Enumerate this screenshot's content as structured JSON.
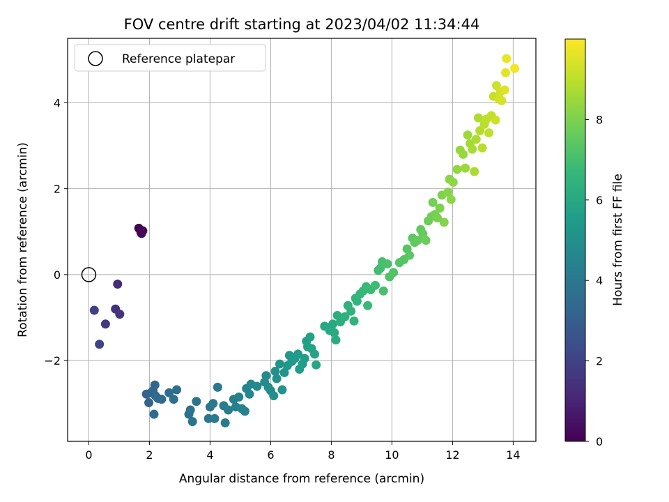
{
  "chart_data": {
    "type": "scatter",
    "title": "FOV centre drift starting at 2023/04/02 11:34:44",
    "xlabel": "Angular distance from reference (arcmin)",
    "ylabel": "Rotation from reference (arcmin)",
    "xlim": [
      -0.7,
      14.75
    ],
    "ylim": [
      -3.88,
      5.5
    ],
    "xticks": [
      0,
      2,
      4,
      6,
      8,
      10,
      12,
      14
    ],
    "yticks": [
      -2,
      0,
      2,
      4
    ],
    "xtick_labels": [
      "0",
      "2",
      "4",
      "6",
      "8",
      "10",
      "12",
      "14"
    ],
    "ytick_labels": [
      "−2",
      "0",
      "2",
      "4"
    ],
    "grid": true,
    "legend": {
      "location": "upper-left",
      "entries": [
        "Reference platepar"
      ]
    },
    "reference_point": {
      "x": 0,
      "y": 0,
      "marker": "open-circle",
      "color": "#000000"
    },
    "colorbar": {
      "label": "Hours from first FF file",
      "range": [
        0,
        10
      ],
      "ticks": [
        0,
        2,
        4,
        6,
        8
      ],
      "tick_labels": [
        "0",
        "2",
        "4",
        "6",
        "8"
      ],
      "colormap": "viridis",
      "colormap_stops": [
        "#440154",
        "#482878",
        "#3e4989",
        "#31688e",
        "#26828e",
        "#1f9e89",
        "#35b779",
        "#6ece58",
        "#b5de2b",
        "#fde725"
      ]
    },
    "series": [
      {
        "color_by": "hours",
        "points": [
          [
            1.65,
            1.08,
            0.0
          ],
          [
            1.72,
            0.98,
            0.05
          ],
          [
            1.78,
            1.02,
            0.1
          ],
          [
            1.74,
            0.96,
            0.15
          ],
          [
            0.95,
            -0.22,
            1.2
          ],
          [
            0.88,
            -0.8,
            1.35
          ],
          [
            1.02,
            -0.92,
            1.5
          ],
          [
            0.55,
            -1.15,
            1.7
          ],
          [
            0.18,
            -0.83,
            1.9
          ],
          [
            0.35,
            -1.62,
            2.05
          ],
          [
            1.9,
            -2.78,
            3.1
          ],
          [
            1.98,
            -2.98,
            3.15
          ],
          [
            2.05,
            -2.75,
            3.2
          ],
          [
            2.12,
            -2.7,
            3.25
          ],
          [
            2.18,
            -2.57,
            3.3
          ],
          [
            2.2,
            -2.82,
            3.35
          ],
          [
            2.28,
            -2.88,
            3.4
          ],
          [
            2.4,
            -2.9,
            3.45
          ],
          [
            2.15,
            -3.25,
            3.5
          ],
          [
            2.65,
            -2.75,
            3.55
          ],
          [
            2.8,
            -2.9,
            3.6
          ],
          [
            2.9,
            -2.68,
            3.65
          ],
          [
            3.3,
            -3.25,
            3.7
          ],
          [
            3.35,
            -3.15,
            3.75
          ],
          [
            3.42,
            -3.42,
            3.8
          ],
          [
            3.55,
            -2.95,
            3.85
          ],
          [
            3.95,
            -3.35,
            3.9
          ],
          [
            4.0,
            -3.08,
            3.95
          ],
          [
            4.1,
            -3.0,
            4.0
          ],
          [
            4.15,
            -3.35,
            4.05
          ],
          [
            4.25,
            -2.62,
            4.1
          ],
          [
            4.45,
            -3.05,
            4.15
          ],
          [
            4.5,
            -3.45,
            4.2
          ],
          [
            4.6,
            -3.15,
            4.25
          ],
          [
            4.78,
            -2.9,
            4.3
          ],
          [
            4.85,
            -3.08,
            4.35
          ],
          [
            4.95,
            -2.85,
            4.4
          ],
          [
            5.05,
            -3.12,
            4.45
          ],
          [
            5.15,
            -3.18,
            4.5
          ],
          [
            5.2,
            -2.65,
            4.55
          ],
          [
            5.3,
            -2.78,
            4.6
          ],
          [
            5.35,
            -2.55,
            4.65
          ],
          [
            5.55,
            -2.6,
            4.7
          ],
          [
            5.8,
            -2.5,
            4.75
          ],
          [
            5.85,
            -2.35,
            4.8
          ],
          [
            5.92,
            -2.62,
            4.85
          ],
          [
            6.0,
            -2.7,
            4.9
          ],
          [
            6.1,
            -2.82,
            4.95
          ],
          [
            6.15,
            -2.25,
            5.0
          ],
          [
            6.2,
            -2.42,
            5.05
          ],
          [
            6.3,
            -2.08,
            5.1
          ],
          [
            6.38,
            -2.68,
            5.15
          ],
          [
            6.45,
            -2.28,
            5.2
          ],
          [
            6.55,
            -2.12,
            5.25
          ],
          [
            6.62,
            -1.88,
            5.3
          ],
          [
            6.7,
            -2.02,
            5.35
          ],
          [
            6.8,
            -1.95,
            5.4
          ],
          [
            6.9,
            -1.85,
            5.45
          ],
          [
            6.95,
            -2.2,
            5.5
          ],
          [
            7.05,
            -2.08,
            5.55
          ],
          [
            7.12,
            -1.95,
            5.6
          ],
          [
            7.18,
            -1.55,
            5.65
          ],
          [
            7.22,
            -1.68,
            5.7
          ],
          [
            7.3,
            -1.45,
            5.75
          ],
          [
            7.35,
            -1.72,
            5.8
          ],
          [
            7.45,
            -1.85,
            5.85
          ],
          [
            7.5,
            -2.1,
            5.9
          ],
          [
            7.78,
            -1.2,
            5.95
          ],
          [
            7.95,
            -1.3,
            6.0
          ],
          [
            8.05,
            -1.15,
            6.05
          ],
          [
            8.1,
            -1.35,
            6.1
          ],
          [
            8.15,
            -1.52,
            6.15
          ],
          [
            8.2,
            -0.95,
            6.2
          ],
          [
            8.3,
            -1.1,
            6.25
          ],
          [
            8.45,
            -0.98,
            6.3
          ],
          [
            8.55,
            -0.72,
            6.35
          ],
          [
            8.65,
            -0.85,
            6.4
          ],
          [
            8.75,
            -1.08,
            6.45
          ],
          [
            8.8,
            -0.55,
            6.5
          ],
          [
            8.85,
            -0.62,
            6.55
          ],
          [
            8.95,
            -0.45,
            6.6
          ],
          [
            9.05,
            -0.38,
            6.65
          ],
          [
            9.15,
            -0.28,
            6.7
          ],
          [
            9.2,
            -0.72,
            6.75
          ],
          [
            9.3,
            -0.35,
            6.8
          ],
          [
            9.45,
            -0.25,
            6.85
          ],
          [
            9.55,
            0.1,
            6.9
          ],
          [
            9.62,
            0.15,
            6.95
          ],
          [
            9.68,
            0.3,
            7.0
          ],
          [
            9.72,
            -0.38,
            7.05
          ],
          [
            9.85,
            0.25,
            7.1
          ],
          [
            9.92,
            -0.05,
            7.15
          ],
          [
            10.05,
            0.05,
            7.2
          ],
          [
            10.25,
            0.28,
            7.25
          ],
          [
            10.4,
            0.35,
            7.3
          ],
          [
            10.5,
            0.6,
            7.35
          ],
          [
            10.58,
            0.45,
            7.4
          ],
          [
            10.68,
            0.85,
            7.45
          ],
          [
            10.75,
            0.75,
            7.5
          ],
          [
            10.85,
            0.8,
            7.55
          ],
          [
            10.95,
            1.05,
            7.6
          ],
          [
            11.02,
            0.95,
            7.65
          ],
          [
            11.12,
            0.8,
            7.7
          ],
          [
            11.2,
            1.25,
            7.75
          ],
          [
            11.3,
            1.35,
            7.8
          ],
          [
            11.35,
            1.68,
            7.85
          ],
          [
            11.42,
            1.4,
            7.9
          ],
          [
            11.5,
            1.32,
            7.95
          ],
          [
            11.58,
            1.55,
            8.0
          ],
          [
            11.65,
            1.85,
            8.05
          ],
          [
            11.72,
            1.22,
            8.1
          ],
          [
            11.85,
            1.92,
            8.15
          ],
          [
            11.9,
            2.22,
            8.2
          ],
          [
            11.95,
            1.75,
            8.25
          ],
          [
            12.02,
            2.15,
            8.3
          ],
          [
            12.15,
            2.45,
            8.35
          ],
          [
            12.25,
            2.9,
            8.4
          ],
          [
            12.35,
            2.8,
            8.45
          ],
          [
            12.42,
            2.48,
            8.5
          ],
          [
            12.5,
            3.25,
            8.55
          ],
          [
            12.58,
            3.05,
            8.6
          ],
          [
            12.65,
            2.92,
            8.65
          ],
          [
            12.72,
            2.4,
            8.7
          ],
          [
            12.78,
            3.15,
            8.75
          ],
          [
            12.85,
            3.65,
            8.8
          ],
          [
            12.9,
            3.35,
            8.85
          ],
          [
            12.98,
            2.95,
            8.9
          ],
          [
            13.05,
            3.5,
            8.95
          ],
          [
            13.12,
            3.62,
            9.0
          ],
          [
            13.2,
            3.3,
            9.05
          ],
          [
            13.28,
            3.7,
            9.1
          ],
          [
            13.35,
            4.15,
            9.15
          ],
          [
            13.42,
            3.6,
            9.2
          ],
          [
            13.45,
            4.4,
            9.25
          ],
          [
            13.52,
            4.1,
            9.3
          ],
          [
            13.58,
            4.25,
            9.35
          ],
          [
            13.62,
            4.05,
            9.4
          ],
          [
            13.72,
            4.3,
            9.5
          ],
          [
            13.75,
            4.7,
            9.6
          ],
          [
            13.78,
            5.03,
            9.7
          ],
          [
            14.05,
            4.8,
            9.85
          ]
        ]
      }
    ]
  }
}
